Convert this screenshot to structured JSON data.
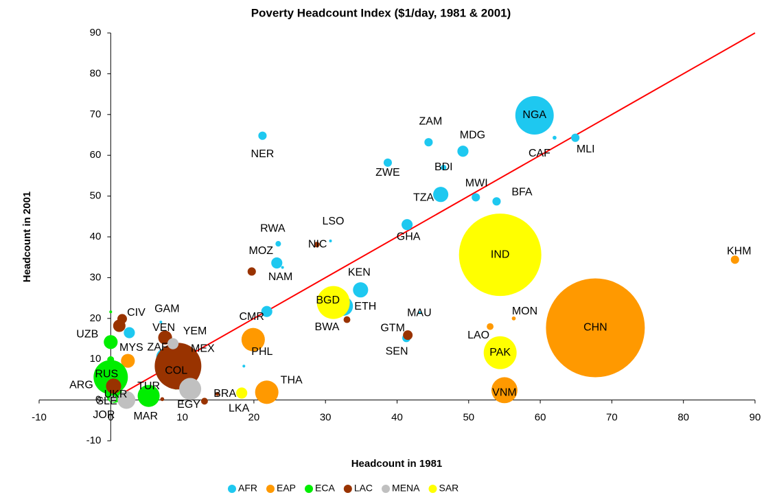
{
  "chart_data": {
    "type": "bubble",
    "title": "Poverty Headcount Index ($1/day, 1981 & 2001)",
    "x_label": "Headcount in 1981",
    "y_label": "Headcount in 2001",
    "xlim": [
      -10,
      90
    ],
    "ylim": [
      -10,
      90
    ],
    "xticks": [
      -10,
      0,
      10,
      20,
      30,
      40,
      50,
      60,
      70,
      80,
      90
    ],
    "yticks": [
      -10,
      0,
      10,
      20,
      30,
      40,
      50,
      60,
      70,
      80,
      90
    ],
    "legend": "bottom",
    "reference_line": {
      "x": [
        0,
        90
      ],
      "y": [
        0,
        90
      ],
      "color": "#ff0000"
    },
    "series": [
      {
        "name": "AFR",
        "color": "#1ec8f0",
        "labels": [
          "NGA",
          "NER",
          "ZAM",
          "MDG",
          "CAF",
          "MLI",
          "ZWE",
          "BDI",
          "TZA",
          "MWI",
          "BFA",
          "LSO",
          "GHA",
          "RWA",
          "MOZ",
          "NAM",
          "KEN",
          "ETH",
          "MAU",
          "CMR",
          "SEN",
          "ZAF",
          "CIV",
          "GAM",
          null,
          "SLE"
        ],
        "x": [
          59.2,
          21.2,
          44.4,
          49.2,
          62,
          64.9,
          38.7,
          46.5,
          46.1,
          51,
          53.9,
          30.7,
          41.4,
          23.4,
          23.2,
          24,
          34.9,
          32.5,
          43.2,
          21.8,
          41.3,
          7.6,
          2.6,
          7.0,
          18.6,
          0.5
        ],
        "y": [
          69.8,
          64.8,
          63.2,
          61,
          64.3,
          64.3,
          58.2,
          57,
          50.4,
          49.7,
          48.7,
          39,
          43,
          38.3,
          33.6,
          32.5,
          27,
          23,
          21.4,
          21.7,
          15.2,
          10.5,
          16.5,
          19.1,
          8.3,
          1.0
        ],
        "sizes": [
          192,
          9,
          9,
          16,
          2,
          9,
          9,
          4,
          30,
          9,
          9,
          1,
          16,
          4,
          16,
          1,
          30,
          48,
          1,
          16,
          9,
          41,
          16,
          1,
          1,
          6
        ]
      },
      {
        "name": "EAP",
        "color": "#ff9900",
        "labels": [
          "CHN",
          "KHM",
          "MON",
          "LAO",
          "VNM",
          "PHL",
          "THA",
          "MYS"
        ],
        "x": [
          67.7,
          87.2,
          56.3,
          53,
          55,
          19.9,
          21.8,
          2.4
        ],
        "y": [
          17.7,
          34.4,
          20,
          18,
          2.4,
          14.8,
          1.9,
          9.6
        ],
        "sizes": [
          1270,
          9,
          2,
          6,
          88,
          71,
          71,
          25
        ]
      },
      {
        "name": "ECA",
        "color": "#00ee00",
        "labels": [
          "UZB",
          null,
          null,
          "RUS",
          "TUR",
          null,
          "UKR"
        ],
        "x": [
          0,
          0,
          0,
          0,
          5.3,
          9.1,
          0.5
        ],
        "y": [
          14.2,
          21.6,
          9.9,
          5.6,
          1,
          3.4,
          1.3
        ],
        "sizes": [
          25,
          1,
          6,
          153,
          63,
          6,
          35
        ]
      },
      {
        "name": "LAC",
        "color": "#993300",
        "labels": [
          "MEX",
          "COL",
          "BRA",
          "VEN",
          "NIC",
          null,
          "BWA",
          "GTM",
          null,
          null,
          null,
          "ARG",
          null
        ],
        "x": [
          9.4,
          7.8,
          14.9,
          7.6,
          28.8,
          19.7,
          33,
          41.5,
          1.6,
          1.2,
          13.1,
          0.4,
          7.2
        ],
        "y": [
          8.3,
          7.8,
          1.5,
          15.3,
          38.1,
          31.5,
          19.7,
          15.9,
          19.9,
          18.2,
          -0.3,
          3.4,
          0.2
        ],
        "sizes": [
          283,
          35,
          2,
          25,
          4,
          9,
          6,
          12,
          12,
          20,
          6,
          30,
          2
        ]
      },
      {
        "name": "MENA",
        "color": "#c0c0c0",
        "labels": [
          "EGY",
          "MAR",
          "YEM",
          "JOR"
        ],
        "x": [
          11.1,
          2.2,
          8.7,
          0.3
        ],
        "y": [
          2.7,
          0,
          13.8,
          0.3
        ],
        "sizes": [
          63,
          41,
          16,
          6
        ]
      },
      {
        "name": "SAR",
        "color": "#ffff00",
        "labels": [
          "IND",
          "BGD",
          "PAK",
          "LKA"
        ],
        "x": [
          54.4,
          31.1,
          54.4,
          18.3
        ],
        "y": [
          35.6,
          23.9,
          11.6,
          1.7
        ],
        "sizes": [
          882,
          141,
          141,
          16
        ]
      }
    ]
  }
}
